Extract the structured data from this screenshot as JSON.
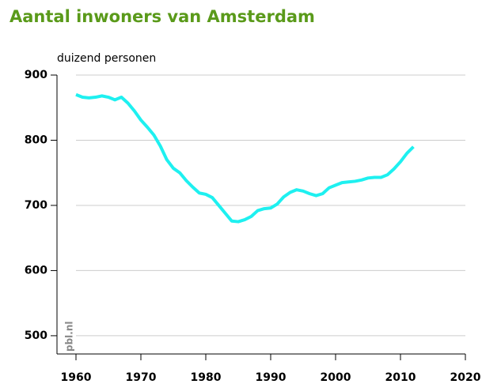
{
  "chart_data": {
    "type": "line",
    "title": "Aantal inwoners van Amsterdam",
    "y_axis_label": "duizend personen",
    "source": "pbl.nl",
    "x": [
      1960,
      1961,
      1962,
      1963,
      1964,
      1965,
      1966,
      1967,
      1968,
      1969,
      1970,
      1971,
      1972,
      1973,
      1974,
      1975,
      1976,
      1977,
      1978,
      1979,
      1980,
      1981,
      1982,
      1983,
      1984,
      1985,
      1986,
      1987,
      1988,
      1989,
      1990,
      1991,
      1992,
      1993,
      1994,
      1995,
      1996,
      1997,
      1998,
      1999,
      2000,
      2001,
      2002,
      2003,
      2004,
      2005,
      2006,
      2007,
      2008,
      2009,
      2010,
      2011,
      2012
    ],
    "series": [
      {
        "name": "Amsterdam",
        "color": "#1ef0f0",
        "values": [
          870,
          866,
          865,
          866,
          868,
          866,
          862,
          866,
          857,
          845,
          831,
          820,
          808,
          791,
          770,
          757,
          750,
          738,
          728,
          719,
          717,
          712,
          700,
          688,
          676,
          675,
          678,
          683,
          692,
          695,
          696,
          702,
          713,
          720,
          724,
          722,
          718,
          715,
          718,
          727,
          731,
          735,
          736,
          737,
          739,
          742,
          743,
          743,
          747,
          756,
          767,
          780,
          790
        ]
      }
    ],
    "xlim": [
      1960,
      2020
    ],
    "xticks": [
      1960,
      1970,
      1980,
      1990,
      2000,
      2010,
      2020
    ],
    "ylim": [
      472,
      900
    ],
    "yticks": [
      500,
      600,
      700,
      800,
      900
    ],
    "grid": true
  }
}
